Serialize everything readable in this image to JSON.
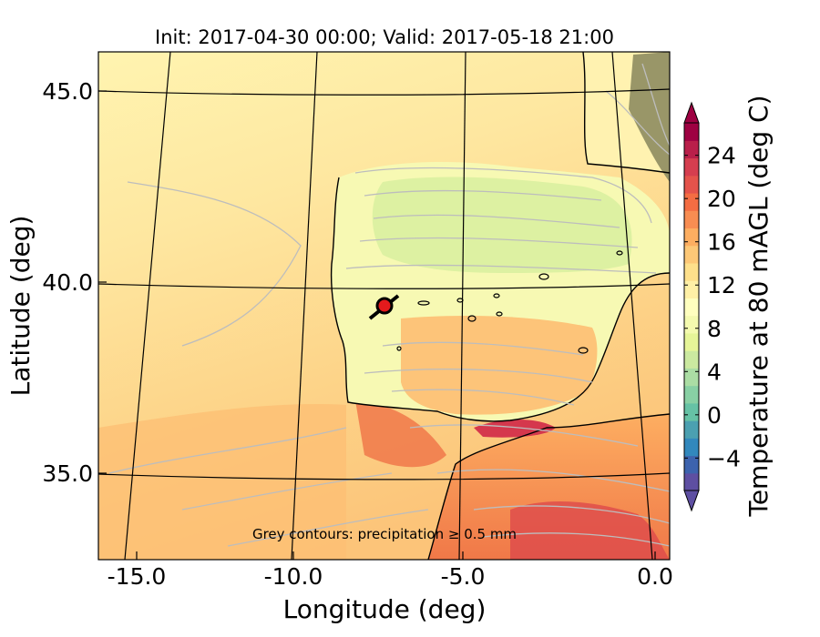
{
  "title": "Init: 2017-04-30 00:00; Valid: 2017-05-18 21:00",
  "map": {
    "xlabel": "Longitude (deg)",
    "ylabel": "Latitude (deg)",
    "x_ticks": [
      "-15.0",
      "-10.0",
      "-5.0",
      "0.0"
    ],
    "y_ticks": [
      "45.0",
      "40.0",
      "35.0"
    ],
    "annotation": "Grey contours: precipitation ≥ 0.5 mm",
    "marker": {
      "name": "site-marker",
      "lon": -7.6,
      "lat": 39.3,
      "color": "#e41a1c"
    }
  },
  "colorbar": {
    "label": "Temperature at 80 mAGL (deg C)",
    "ticks": [
      "−4",
      "0",
      "4",
      "8",
      "12",
      "16",
      "20",
      "24"
    ],
    "tick_values": [
      -4,
      0,
      4,
      8,
      12,
      16,
      20,
      24
    ],
    "range": [
      -7,
      27
    ],
    "extend": "both",
    "colors": [
      "#5e4fa2",
      "#3d63ae",
      "#3288bd",
      "#4ba0b1",
      "#66c2a5",
      "#88d0a4",
      "#abdda4",
      "#cbe9a0",
      "#e6f598",
      "#f4faaf",
      "#ffffbf",
      "#fff0a6",
      "#fee08b",
      "#fdc877",
      "#fdae61",
      "#f88d52",
      "#f46d43",
      "#e4534b",
      "#d53e4f",
      "#b91f4a",
      "#9e0142"
    ]
  }
}
